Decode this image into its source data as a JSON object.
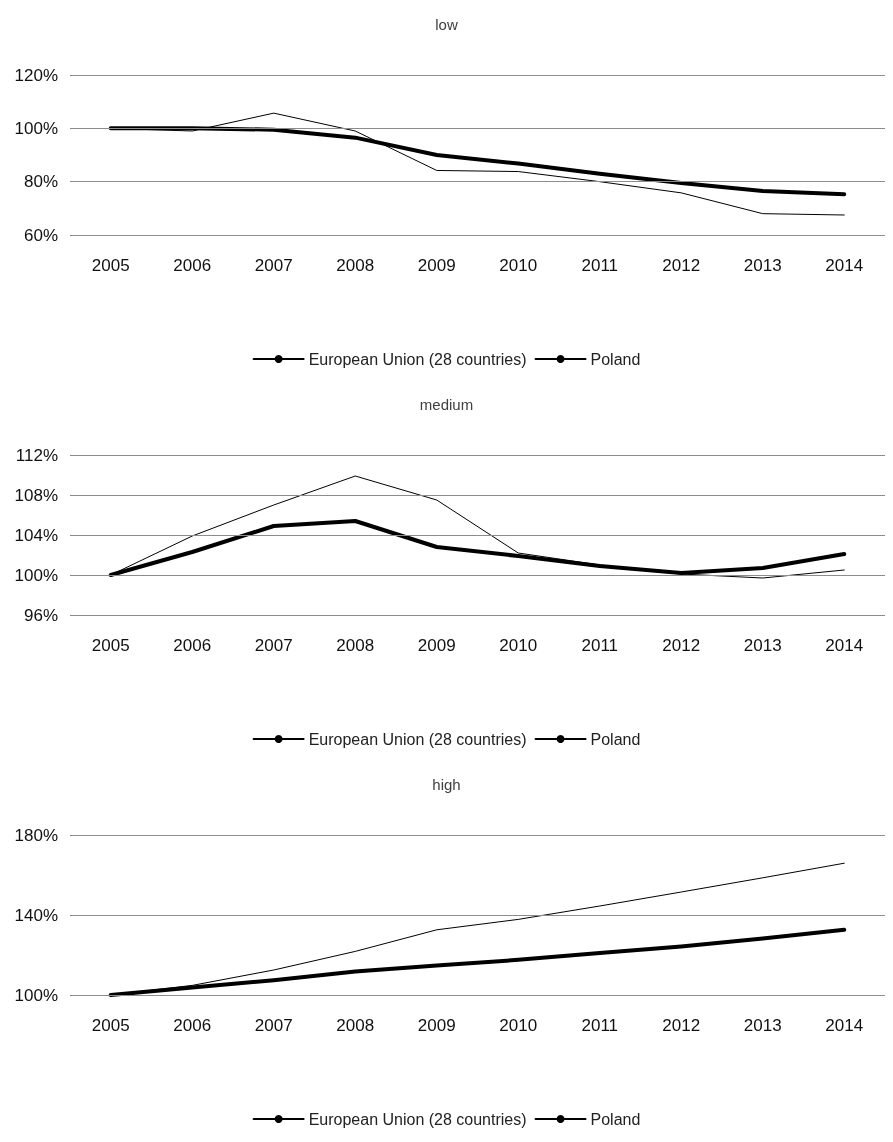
{
  "chart_data": [
    {
      "type": "line",
      "title": "low",
      "categories": [
        "2005",
        "2006",
        "2007",
        "2008",
        "2009",
        "2010",
        "2011",
        "2012",
        "2013",
        "2014"
      ],
      "series": [
        {
          "name": "European Union (28 countries)",
          "color": "#000000",
          "values": [
            100,
            100,
            99.5,
            96.5,
            90,
            86.8,
            83,
            79.5,
            76.5,
            75.3
          ]
        },
        {
          "name": "Poland",
          "color": "#000000",
          "values": [
            100,
            99,
            105.7,
            99,
            84.2,
            83.8,
            80,
            75.8,
            68,
            67.5
          ]
        }
      ],
      "ylim": [
        60,
        120
      ],
      "yticks": [
        {
          "value": 60,
          "label": "60%"
        },
        {
          "value": 80,
          "label": "80%"
        },
        {
          "value": 100,
          "label": "100%"
        },
        {
          "value": 120,
          "label": "120%"
        }
      ],
      "grid": "y",
      "legend": "bottom",
      "marker": "none",
      "line_style": "solid"
    },
    {
      "type": "line",
      "title": "medium",
      "categories": [
        "2005",
        "2006",
        "2007",
        "2008",
        "2009",
        "2010",
        "2011",
        "2012",
        "2013",
        "2014"
      ],
      "series": [
        {
          "name": "European Union (28 countries)",
          "color": "#000000",
          "values": [
            100,
            102.3,
            104.9,
            105.4,
            102.8,
            101.9,
            100.9,
            100.2,
            100.7,
            102.1
          ]
        },
        {
          "name": "Poland",
          "color": "#000000",
          "values": [
            100,
            103.9,
            107,
            109.9,
            107.5,
            102.2,
            101,
            100.1,
            99.7,
            100.5
          ]
        }
      ],
      "ylim": [
        96,
        112
      ],
      "yticks": [
        {
          "value": 96,
          "label": "96%"
        },
        {
          "value": 100,
          "label": "100%"
        },
        {
          "value": 104,
          "label": "104%"
        },
        {
          "value": 108,
          "label": "108%"
        },
        {
          "value": 112,
          "label": "112%"
        }
      ],
      "grid": "y",
      "legend": "bottom",
      "marker": "none",
      "line_style": "solid"
    },
    {
      "type": "line",
      "title": "high",
      "categories": [
        "2005",
        "2006",
        "2007",
        "2008",
        "2009",
        "2010",
        "2011",
        "2012",
        "2013",
        "2014"
      ],
      "series": [
        {
          "name": "European Union (28 countries)",
          "color": "#000000",
          "values": [
            100,
            103.8,
            107.4,
            111.8,
            114.7,
            117.6,
            121,
            124.3,
            128.2,
            132.6
          ]
        },
        {
          "name": "Poland",
          "color": "#000000",
          "values": [
            100,
            104.8,
            112.5,
            121.8,
            132.6,
            137.8,
            144.5,
            151.5,
            158.6,
            165.9
          ]
        }
      ],
      "ylim": [
        100,
        180
      ],
      "yticks": [
        {
          "value": 100,
          "label": "100%"
        },
        {
          "value": 140,
          "label": "140%"
        },
        {
          "value": 180,
          "label": "180%"
        }
      ],
      "grid": "y",
      "legend": "bottom",
      "marker": "none",
      "line_style": "solid"
    }
  ]
}
